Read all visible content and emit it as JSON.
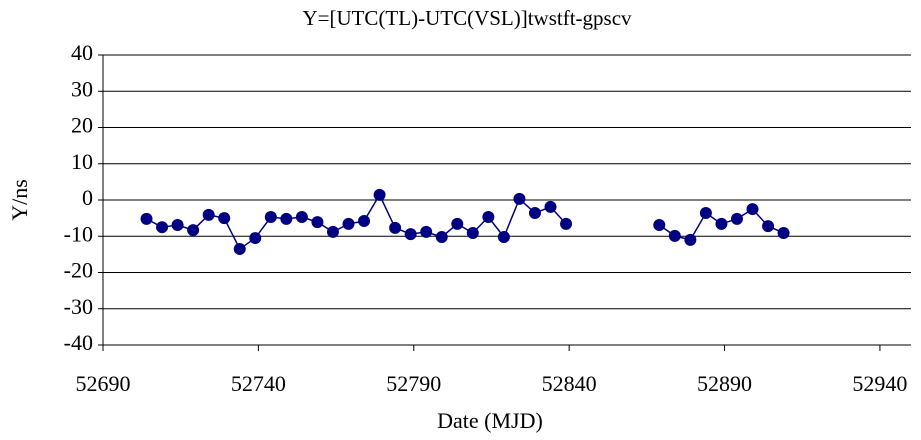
{
  "chart_data": {
    "type": "line",
    "title": "Y=[UTC(TL)-UTC(VSL)]twstft-gpscv",
    "xlabel": "Date (MJD)",
    "ylabel": "Y/ns",
    "x": [
      52704,
      52709,
      52714,
      52719,
      52724,
      52729,
      52734,
      52739,
      52744,
      52749,
      52754,
      52759,
      52764,
      52769,
      52774,
      52779,
      52784,
      52789,
      52794,
      52799,
      52804,
      52809,
      52814,
      52819,
      52824,
      52829,
      52834,
      52839,
      52854,
      52869,
      52874,
      52879,
      52884,
      52889,
      52894,
      52899,
      52904,
      52909
    ],
    "series": [
      {
        "color": "#000080",
        "values": [
          -5.2,
          -7.5,
          -6.9,
          -8.3,
          -4.1,
          -5,
          -13.5,
          -10.5,
          -4.7,
          -5.2,
          -4.7,
          -6.1,
          -8.8,
          -6.6,
          -5.8,
          1.4,
          -7.7,
          -9.4,
          -8.8,
          -10.2,
          -6.6,
          -9.1,
          -4.7,
          -10.2,
          0.3,
          -3.6,
          -1.9,
          -6.6,
          null,
          -6.9,
          -9.9,
          -11,
          -3.6,
          -6.6,
          -5.2,
          -2.5,
          -7.2,
          -9.1
        ]
      }
    ],
    "xlim": [
      52690,
      52950
    ],
    "xticks": [
      52690,
      52740,
      52790,
      52840,
      52890,
      52940
    ],
    "ylim": [
      -40,
      40
    ],
    "yticks": [
      -40,
      -30,
      -20,
      -10,
      0,
      10,
      20,
      30,
      40
    ],
    "grid": true
  }
}
